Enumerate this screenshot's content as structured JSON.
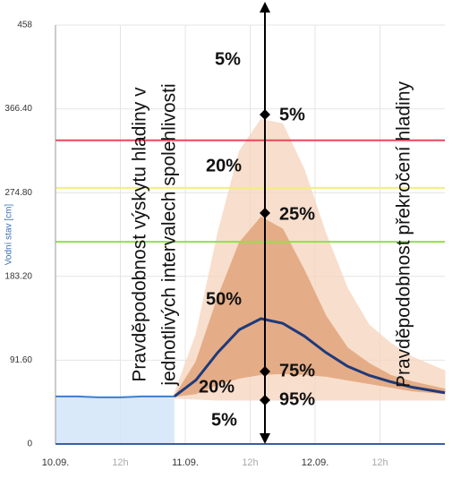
{
  "chart_data": {
    "type": "forecast-band",
    "y_label": "Vodní stav [cm]",
    "xlim": [
      0,
      72
    ],
    "xticks": [
      {
        "value": 0,
        "label": "10.09."
      },
      {
        "value": 12,
        "label": "12h"
      },
      {
        "value": 24,
        "label": "11.09."
      },
      {
        "value": 36,
        "label": "12h"
      },
      {
        "value": 48,
        "label": "12.09."
      },
      {
        "value": 60,
        "label": "12h"
      }
    ],
    "ylim": [
      0,
      458
    ],
    "yticks": [
      0,
      {
        "value": 91.6,
        "label": "91.60"
      },
      {
        "value": 183.2,
        "label": "183.20"
      },
      {
        "value": 274.8,
        "label": "274.80"
      },
      {
        "value": 366.4,
        "label": "366.40"
      },
      458
    ],
    "grid": true,
    "thresholds": [
      {
        "value": 332,
        "color": "#e8475a"
      },
      {
        "value": 280,
        "color": "#f2ef7a"
      },
      {
        "value": 221,
        "color": "#8fe04a"
      }
    ],
    "observed": {
      "color": "#3a7fcf",
      "x": [
        0,
        4,
        8,
        12,
        16,
        20,
        22
      ],
      "values": [
        52,
        52,
        51,
        51,
        52,
        52,
        52
      ]
    },
    "forecast_x": [
      22,
      26,
      30,
      34,
      38,
      42,
      46,
      50,
      54,
      58,
      62,
      66,
      72
    ],
    "bands": [
      {
        "color": "#f7d6c0",
        "upper": [
          55,
          120,
          230,
          320,
          355,
          350,
          300,
          230,
          170,
          130,
          110,
          95,
          80
        ],
        "lower": [
          50,
          49,
          48,
          48,
          48,
          48,
          48,
          48,
          48,
          48,
          48,
          48,
          48
        ]
      },
      {
        "color": "#e0a176",
        "upper": [
          52,
          90,
          160,
          220,
          248,
          235,
          190,
          140,
          105,
          88,
          75,
          68,
          60
        ],
        "lower": [
          52,
          55,
          65,
          72,
          76,
          77,
          76,
          74,
          70,
          66,
          62,
          58,
          55
        ]
      }
    ],
    "median": {
      "color": "#1f3a7a",
      "values": [
        52,
        70,
        100,
        125,
        137,
        132,
        118,
        100,
        85,
        75,
        68,
        62,
        56
      ]
    },
    "annotations": [
      "5%",
      "5%",
      "20%",
      "25%",
      "50%",
      "75%",
      "20%",
      "95%",
      "5%"
    ],
    "left_note": [
      "Pravděpodobnost výskytu hladiny v",
      "jednotlivých intervalech spolehlivosti"
    ],
    "right_note": "Pravděpodobnost překročení hladiny"
  }
}
